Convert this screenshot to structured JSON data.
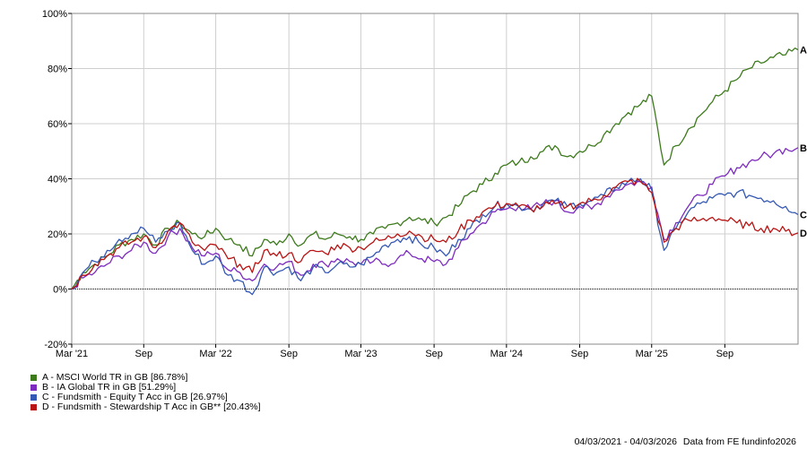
{
  "chart_data": {
    "type": "line",
    "x_range": [
      "2021-03-04",
      "2026-03-04"
    ],
    "ylim": [
      -20,
      100
    ],
    "y_ticks": [
      -20,
      0,
      20,
      40,
      60,
      80,
      100
    ],
    "y_tick_labels": [
      "-20%",
      "0%",
      "20%",
      "40%",
      "60%",
      "80%",
      "100%"
    ],
    "x_ticks": [
      {
        "label": "Mar '21",
        "date": "2021-03-04"
      },
      {
        "label": "Sep",
        "date": "2021-09-01"
      },
      {
        "label": "Mar '22",
        "date": "2022-03-01"
      },
      {
        "label": "Sep",
        "date": "2022-09-01"
      },
      {
        "label": "Mar '23",
        "date": "2023-03-01"
      },
      {
        "label": "Sep",
        "date": "2023-09-01"
      },
      {
        "label": "Mar '24",
        "date": "2024-03-01"
      },
      {
        "label": "Sep",
        "date": "2024-09-01"
      },
      {
        "label": "Mar '25",
        "date": "2025-03-01"
      },
      {
        "label": "Sep",
        "date": "2025-09-01"
      }
    ],
    "grid": true,
    "legend_position": "bottom-left",
    "series": [
      {
        "key": "A",
        "name": "A - MSCI World TR in GB [86.78%]",
        "color": "#3d7a1c",
        "x": [
          "2021-03-04",
          "2021-04-01",
          "2021-05-01",
          "2021-06-01",
          "2021-07-01",
          "2021-08-01",
          "2021-09-01",
          "2021-10-01",
          "2021-11-01",
          "2021-12-01",
          "2022-01-01",
          "2022-02-01",
          "2022-03-01",
          "2022-04-01",
          "2022-05-01",
          "2022-06-01",
          "2022-07-01",
          "2022-08-01",
          "2022-09-01",
          "2022-10-01",
          "2022-11-01",
          "2022-12-01",
          "2023-01-01",
          "2023-02-01",
          "2023-03-01",
          "2023-04-01",
          "2023-05-01",
          "2023-06-01",
          "2023-07-01",
          "2023-08-01",
          "2023-09-01",
          "2023-10-01",
          "2023-11-01",
          "2023-12-01",
          "2024-01-01",
          "2024-02-01",
          "2024-03-01",
          "2024-04-01",
          "2024-05-01",
          "2024-06-01",
          "2024-07-01",
          "2024-08-01",
          "2024-09-01",
          "2024-10-01",
          "2024-11-01",
          "2024-12-01",
          "2025-01-01",
          "2025-02-01",
          "2025-03-01",
          "2025-04-01",
          "2025-05-01",
          "2025-06-01",
          "2025-07-01",
          "2025-08-01",
          "2025-09-01",
          "2025-10-01",
          "2025-11-01",
          "2025-12-01",
          "2026-01-01",
          "2026-02-01",
          "2026-03-04"
        ],
        "y": [
          0,
          6,
          9,
          12,
          16,
          18,
          20,
          16,
          22,
          24,
          20,
          19,
          22,
          18,
          16,
          12,
          18,
          16,
          20,
          16,
          20,
          18,
          20,
          19,
          18,
          20,
          22,
          24,
          26,
          25,
          24,
          26,
          30,
          35,
          38,
          42,
          45,
          46,
          48,
          50,
          52,
          48,
          50,
          52,
          56,
          60,
          64,
          67,
          70,
          45,
          52,
          58,
          63,
          68,
          72,
          76,
          80,
          82,
          84,
          85,
          86.8
        ]
      },
      {
        "key": "B",
        "name": "B - IA Global TR in GB [51.29%]",
        "color": "#7d2bbf",
        "x": [
          "2021-03-04",
          "2021-04-01",
          "2021-05-01",
          "2021-06-01",
          "2021-07-01",
          "2021-08-01",
          "2021-09-01",
          "2021-10-01",
          "2021-11-01",
          "2021-12-01",
          "2022-01-01",
          "2022-02-01",
          "2022-03-01",
          "2022-04-01",
          "2022-05-01",
          "2022-06-01",
          "2022-07-01",
          "2022-08-01",
          "2022-09-01",
          "2022-10-01",
          "2022-11-01",
          "2022-12-01",
          "2023-01-01",
          "2023-02-01",
          "2023-03-01",
          "2023-04-01",
          "2023-05-01",
          "2023-06-01",
          "2023-07-01",
          "2023-08-01",
          "2023-09-01",
          "2023-10-01",
          "2023-11-01",
          "2023-12-01",
          "2024-01-01",
          "2024-02-01",
          "2024-03-01",
          "2024-04-01",
          "2024-05-01",
          "2024-06-01",
          "2024-07-01",
          "2024-08-01",
          "2024-09-01",
          "2024-10-01",
          "2024-11-01",
          "2024-12-01",
          "2025-01-01",
          "2025-02-01",
          "2025-03-01",
          "2025-04-01",
          "2025-05-01",
          "2025-06-01",
          "2025-07-01",
          "2025-08-01",
          "2025-09-01",
          "2025-10-01",
          "2025-11-01",
          "2025-12-01",
          "2026-01-01",
          "2026-02-01",
          "2026-03-04"
        ],
        "y": [
          0,
          4,
          6,
          9,
          12,
          14,
          17,
          13,
          19,
          22,
          15,
          12,
          13,
          7,
          6,
          3,
          9,
          8,
          10,
          5,
          9,
          9,
          11,
          10,
          9,
          10,
          9,
          11,
          13,
          11,
          10,
          9,
          15,
          20,
          24,
          28,
          29,
          30,
          29,
          31,
          32,
          28,
          30,
          29,
          33,
          36,
          38,
          39,
          37,
          18,
          24,
          30,
          34,
          38,
          41,
          44,
          46,
          48,
          49,
          51,
          51.3
        ]
      },
      {
        "key": "C",
        "name": "C - Fundsmith - Equity T Acc in GB [26.97%]",
        "color": "#3458b3",
        "x": [
          "2021-03-04",
          "2021-04-01",
          "2021-05-01",
          "2021-06-01",
          "2021-07-01",
          "2021-08-01",
          "2021-09-01",
          "2021-10-01",
          "2021-11-01",
          "2021-12-01",
          "2022-01-01",
          "2022-02-01",
          "2022-03-01",
          "2022-04-01",
          "2022-05-01",
          "2022-06-01",
          "2022-07-01",
          "2022-08-01",
          "2022-09-01",
          "2022-10-01",
          "2022-11-01",
          "2022-12-01",
          "2023-01-01",
          "2023-02-01",
          "2023-03-01",
          "2023-04-01",
          "2023-05-01",
          "2023-06-01",
          "2023-07-01",
          "2023-08-01",
          "2023-09-01",
          "2023-10-01",
          "2023-11-01",
          "2023-12-01",
          "2024-01-01",
          "2024-02-01",
          "2024-03-01",
          "2024-04-01",
          "2024-05-01",
          "2024-06-01",
          "2024-07-01",
          "2024-08-01",
          "2024-09-01",
          "2024-10-01",
          "2024-11-01",
          "2024-12-01",
          "2025-01-01",
          "2025-02-01",
          "2025-03-01",
          "2025-04-01",
          "2025-05-01",
          "2025-06-01",
          "2025-07-01",
          "2025-08-01",
          "2025-09-01",
          "2025-10-01",
          "2025-11-01",
          "2025-12-01",
          "2026-01-01",
          "2026-02-01",
          "2026-03-04"
        ],
        "y": [
          0,
          6,
          10,
          14,
          18,
          20,
          22,
          17,
          21,
          24,
          14,
          9,
          12,
          5,
          3,
          -2,
          8,
          6,
          8,
          3,
          8,
          6,
          9,
          8,
          9,
          12,
          16,
          18,
          19,
          16,
          15,
          12,
          18,
          22,
          27,
          30,
          31,
          30,
          29,
          31,
          32,
          30,
          31,
          32,
          34,
          37,
          39,
          40,
          36,
          14,
          22,
          28,
          31,
          33,
          34,
          35,
          34,
          33,
          32,
          30,
          27
        ]
      },
      {
        "key": "D",
        "name": "D - Fundsmith - Stewardship T Acc in GB** [20.43%]",
        "color": "#b81414",
        "x": [
          "2021-03-04",
          "2021-04-01",
          "2021-05-01",
          "2021-06-01",
          "2021-07-01",
          "2021-08-01",
          "2021-09-01",
          "2021-10-01",
          "2021-11-01",
          "2021-12-01",
          "2022-01-01",
          "2022-02-01",
          "2022-03-01",
          "2022-04-01",
          "2022-05-01",
          "2022-06-01",
          "2022-07-01",
          "2022-08-01",
          "2022-09-01",
          "2022-10-01",
          "2022-11-01",
          "2022-12-01",
          "2023-01-01",
          "2023-02-01",
          "2023-03-01",
          "2023-04-01",
          "2023-05-01",
          "2023-06-01",
          "2023-07-01",
          "2023-08-01",
          "2023-09-01",
          "2023-10-01",
          "2023-11-01",
          "2023-12-01",
          "2024-01-01",
          "2024-02-01",
          "2024-03-01",
          "2024-04-01",
          "2024-05-01",
          "2024-06-01",
          "2024-07-01",
          "2024-08-01",
          "2024-09-01",
          "2024-10-01",
          "2024-11-01",
          "2024-12-01",
          "2025-01-01",
          "2025-02-01",
          "2025-03-01",
          "2025-04-01",
          "2025-05-01",
          "2025-06-01",
          "2025-07-01",
          "2025-08-01",
          "2025-09-01",
          "2025-10-01",
          "2025-11-01",
          "2025-12-01",
          "2026-01-01",
          "2026-02-01",
          "2026-03-04"
        ],
        "y": [
          0,
          5,
          9,
          12,
          15,
          17,
          19,
          15,
          21,
          24,
          17,
          14,
          16,
          11,
          9,
          6,
          14,
          12,
          13,
          10,
          14,
          13,
          16,
          15,
          15,
          17,
          18,
          20,
          21,
          19,
          18,
          17,
          21,
          25,
          28,
          30,
          31,
          30,
          29,
          30,
          31,
          30,
          31,
          32,
          34,
          37,
          39,
          39,
          35,
          17,
          22,
          25,
          25,
          26,
          25,
          24,
          23,
          22,
          22,
          21,
          20.4
        ]
      }
    ]
  },
  "legend": {
    "items": [
      {
        "label": "A - MSCI World TR in GB [86.78%]",
        "color": "#3d7a1c"
      },
      {
        "label": "B - IA Global TR in GB [51.29%]",
        "color": "#7d2bbf"
      },
      {
        "label": "C - Fundsmith - Equity T Acc in GB [26.97%]",
        "color": "#3458b3"
      },
      {
        "label": "D - Fundsmith - Stewardship T Acc in GB** [20.43%]",
        "color": "#b81414"
      }
    ]
  },
  "footer": {
    "date_range": "04/03/2021 - 04/03/2026",
    "source": "Data from FE fundinfo2026"
  }
}
